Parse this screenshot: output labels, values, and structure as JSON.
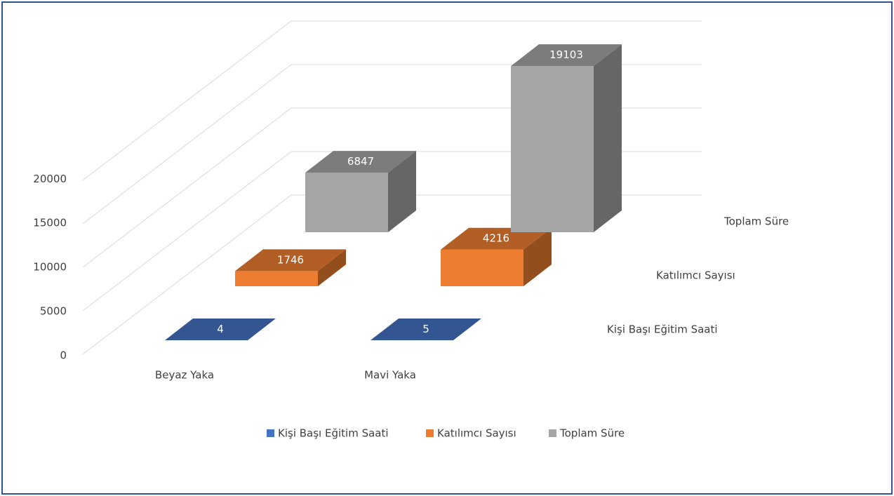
{
  "chart_data": {
    "type": "bar3d",
    "categories": [
      "Beyaz Yaka",
      "Mavi Yaka"
    ],
    "series": [
      {
        "name": "Kişi Başı Eğitim Saati",
        "color": "#4472c4",
        "values": [
          4,
          5
        ]
      },
      {
        "name": "Katılımcı Sayısı",
        "color": "#ed7d31",
        "values": [
          1746,
          4216
        ]
      },
      {
        "name": "Toplam Süre",
        "color": "#a5a5a5",
        "values": [
          6847,
          19103
        ]
      }
    ],
    "ylim": [
      0,
      20000
    ],
    "yticks": [
      0,
      5000,
      10000,
      15000,
      20000
    ],
    "grid": true,
    "legend": "bottom"
  }
}
